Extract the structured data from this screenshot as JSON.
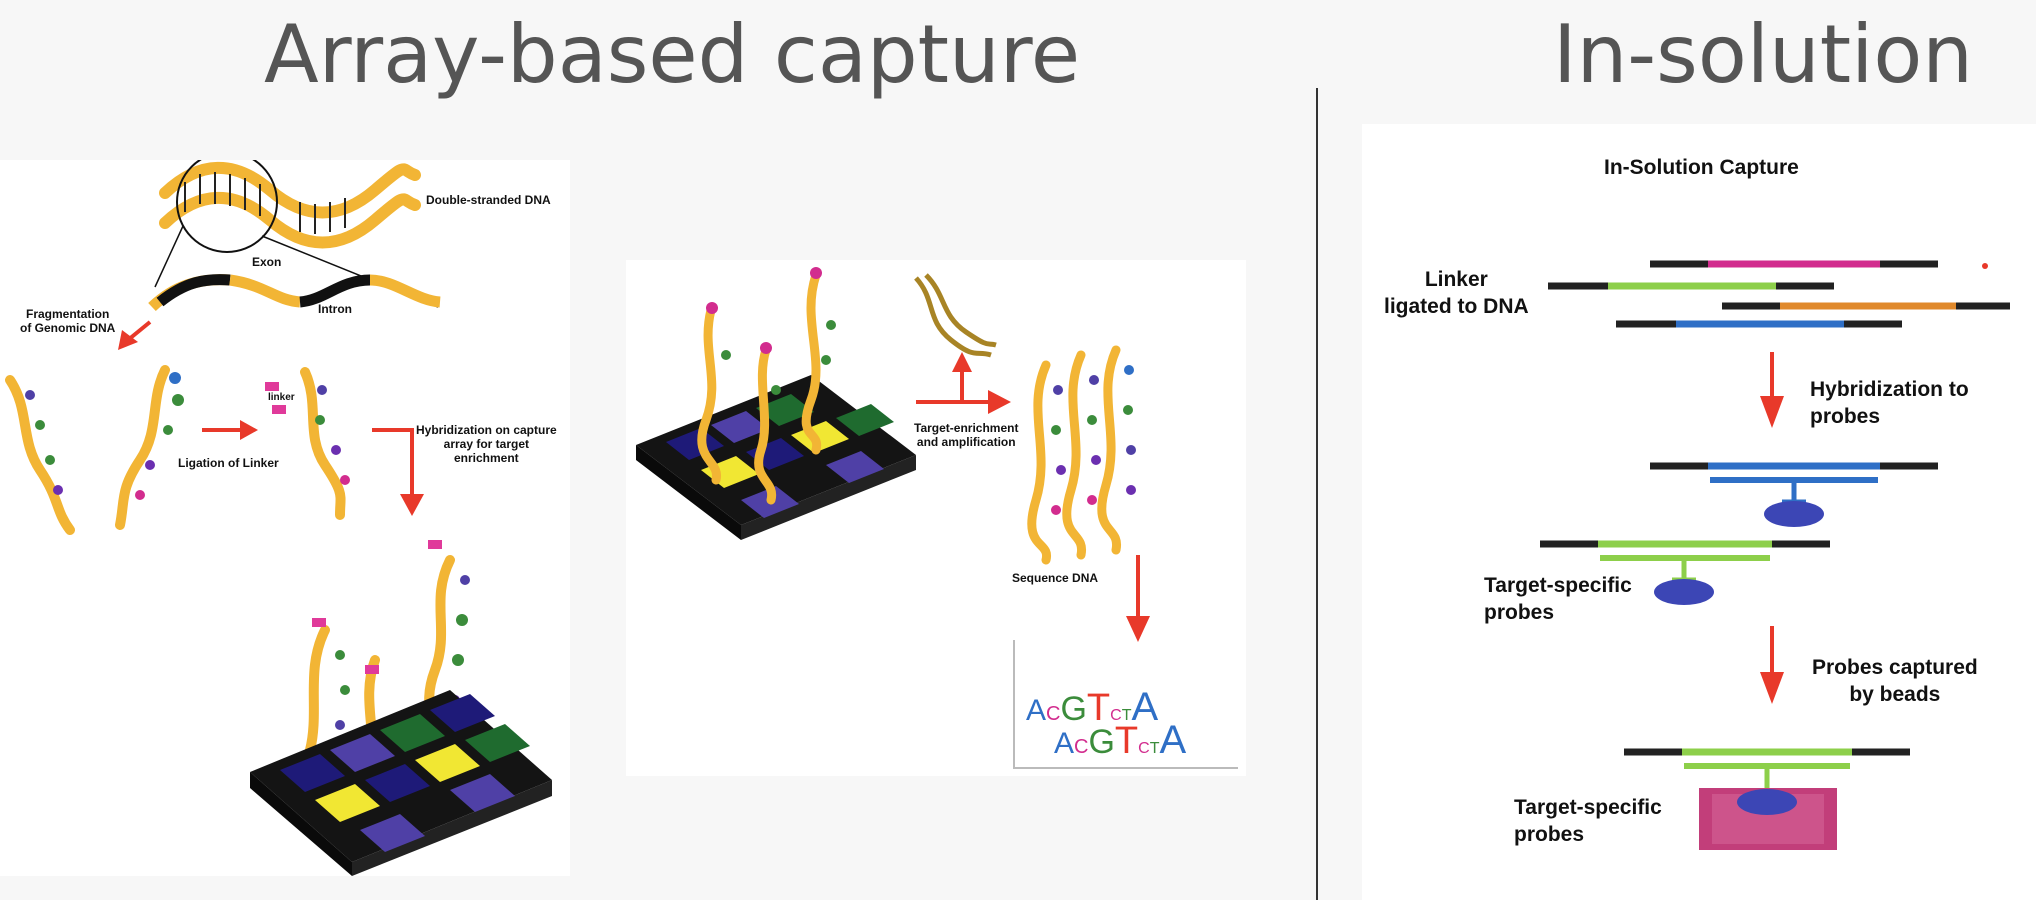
{
  "headings": {
    "array": "Array-based capture",
    "solution": "In-solution"
  },
  "array_panel": {
    "double_stranded_dna": "Double-stranded DNA",
    "exon": "Exon",
    "intron": "Intron",
    "fragmentation": "Fragmentation\nof Genomic DNA",
    "linker": "linker",
    "ligation": "Ligation of Linker",
    "hybridization": "Hybridization on capture\narray for target\nenrichment"
  },
  "enrichment_panel": {
    "target_enrichment": "Target-enrichment\nand amplification",
    "sequence_dna": "Sequence DNA",
    "sequence_row1": [
      "A",
      "C",
      "G",
      "T",
      "C",
      "T",
      "A"
    ],
    "sequence_row2": [
      "A",
      "C",
      "G",
      "T",
      "C",
      "T",
      "A"
    ]
  },
  "solution_panel": {
    "title": "In-Solution Capture",
    "linker_ligated": "Linker\nligated to DNA",
    "hybridization_to_probes": "Hybridization to probes",
    "target_specific_probes_1": "Target-specific\nprobes",
    "probes_captured": "Probes captured\nby beads",
    "target_specific_probes_2": "Target-specific\nprobes"
  },
  "colors": {
    "dna_strand": "#f2b535",
    "arrow": "#e8392a",
    "probe_blue": "#2f6fc6",
    "probe_green": "#8dcf4a",
    "probe_magenta": "#d22c8e",
    "probe_orange": "#e0892c",
    "bead": "#3c46b5",
    "bead_box": "#c23e7a",
    "array_dark": "#141414",
    "array_navy": "#1e1a78",
    "array_purple": "#4f40a6",
    "array_green": "#1f6b2f",
    "array_yellow": "#f1e733"
  }
}
